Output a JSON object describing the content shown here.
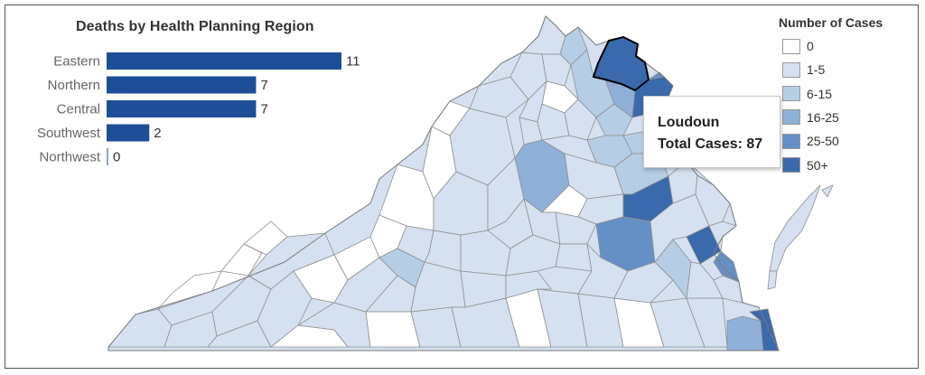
{
  "chart_data": [
    {
      "type": "bar",
      "title": "Deaths by Health Planning Region",
      "orientation": "horizontal",
      "categories": [
        "Eastern",
        "Northern",
        "Central",
        "Southwest",
        "Northwest"
      ],
      "values": [
        11,
        7,
        7,
        2,
        0
      ],
      "value_labels": [
        "11",
        "7",
        "7",
        "2",
        "0"
      ],
      "xlim": [
        0,
        11
      ],
      "grid": false,
      "color": "#1f4e99"
    },
    {
      "type": "heatmap",
      "subtype": "choropleth",
      "region": "Virginia localities",
      "legend": {
        "title": "Number of Cases",
        "position": "top-right",
        "bins": [
          {
            "label": "0",
            "color": "#ffffff"
          },
          {
            "label": "1-5",
            "color": "#d5e1f0"
          },
          {
            "label": "6-15",
            "color": "#b6cde6"
          },
          {
            "label": "16-25",
            "color": "#8fb0d8"
          },
          {
            "label": "25-50",
            "color": "#6590c6"
          },
          {
            "label": "50+",
            "color": "#3a6aac"
          }
        ]
      },
      "highlighted_locality": {
        "name": "Loudoun",
        "total_cases": 87
      },
      "tooltip": {
        "line1": "Loudoun",
        "line2": "Total Cases: 87"
      }
    }
  ]
}
